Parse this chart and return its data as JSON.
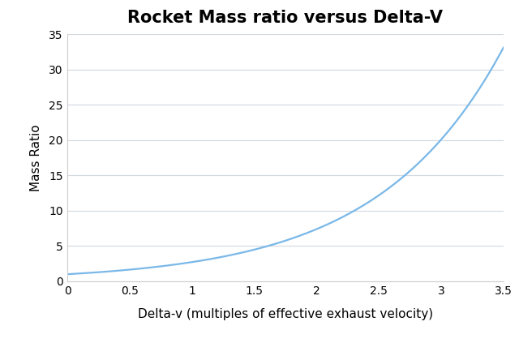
{
  "title": "Rocket Mass ratio versus Delta-V",
  "xlabel": "Delta-v (multiples of effective exhaust velocity)",
  "ylabel": "Mass Ratio",
  "x_min": 0,
  "x_max": 3.5,
  "y_min": 0,
  "y_max": 35,
  "x_ticks": [
    0,
    0.5,
    1,
    1.5,
    2,
    2.5,
    3,
    3.5
  ],
  "x_tick_labels": [
    "0",
    "0.5",
    "1",
    "1.5",
    "2",
    "2.5",
    "3",
    "3.5"
  ],
  "y_ticks": [
    0,
    5,
    10,
    15,
    20,
    25,
    30,
    35
  ],
  "line_color": "#7ab8e8",
  "line_width": 1.6,
  "background_color": "#ffffff",
  "title_fontsize": 15,
  "label_fontsize": 11,
  "tick_fontsize": 10,
  "grid_color": "#d0d8e0",
  "grid_linewidth": 0.8,
  "spine_color": "#cccccc"
}
